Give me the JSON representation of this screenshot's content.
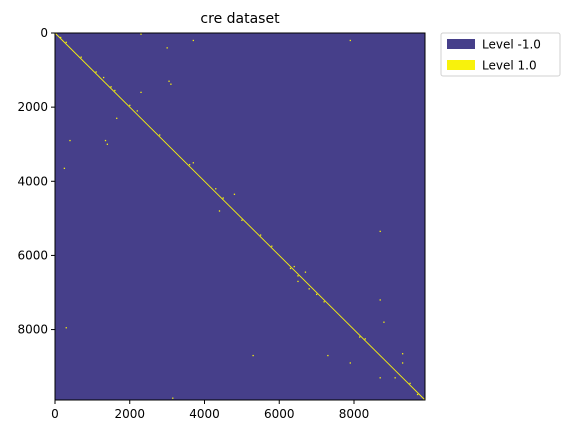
{
  "chart_data": {
    "type": "heatmap",
    "title": "cre dataset",
    "xlabel": "",
    "ylabel": "",
    "xlim": [
      0,
      9900
    ],
    "ylim": [
      9900,
      0
    ],
    "x_ticks": [
      0,
      2000,
      4000,
      6000,
      8000
    ],
    "y_ticks": [
      0,
      2000,
      4000,
      6000,
      8000
    ],
    "x_tick_labels": [
      "0",
      "2000",
      "4000",
      "6000",
      "8000"
    ],
    "y_tick_labels": [
      "0",
      "2000",
      "4000",
      "6000",
      "8000"
    ],
    "levels": [
      {
        "label": "Level -1.0",
        "value": -1.0,
        "color": "#463f8a"
      },
      {
        "label": "Level 1.0",
        "value": 1.0,
        "color": "#f8f20c"
      }
    ],
    "diagonal": {
      "from": [
        0,
        0
      ],
      "to": [
        9900,
        9900
      ],
      "value": 1.0
    },
    "points": [
      [
        150,
        120
      ],
      [
        300,
        250
      ],
      [
        700,
        650
      ],
      [
        1100,
        1050
      ],
      [
        1300,
        1200
      ],
      [
        1500,
        1450
      ],
      [
        1600,
        1550
      ],
      [
        2000,
        1950
      ],
      [
        2200,
        2100
      ],
      [
        2300,
        1600
      ],
      [
        2800,
        2750
      ],
      [
        3000,
        400
      ],
      [
        3050,
        1300
      ],
      [
        3100,
        1380
      ],
      [
        3600,
        3550
      ],
      [
        3700,
        200
      ],
      [
        3700,
        3500
      ],
      [
        1350,
        2900
      ],
      [
        1400,
        3000
      ],
      [
        1650,
        2300
      ],
      [
        400,
        2900
      ],
      [
        250,
        3650
      ],
      [
        4300,
        4200
      ],
      [
        4500,
        4450
      ],
      [
        4400,
        4800
      ],
      [
        4800,
        4350
      ],
      [
        5000,
        5050
      ],
      [
        5300,
        8700
      ],
      [
        5500,
        5450
      ],
      [
        5800,
        5750
      ],
      [
        6400,
        6300
      ],
      [
        6500,
        6700
      ],
      [
        6500,
        6550
      ],
      [
        6700,
        6450
      ],
      [
        6800,
        6900
      ],
      [
        7000,
        7050
      ],
      [
        7200,
        7250
      ],
      [
        7300,
        8700
      ],
      [
        7900,
        200
      ],
      [
        7900,
        8900
      ],
      [
        8300,
        8250
      ],
      [
        8700,
        5350
      ],
      [
        8700,
        7200
      ],
      [
        8800,
        7800
      ],
      [
        8700,
        9300
      ],
      [
        9100,
        9300
      ],
      [
        9300,
        8650
      ],
      [
        9300,
        8900
      ],
      [
        9500,
        9450
      ],
      [
        300,
        7950
      ],
      [
        2300,
        30
      ],
      [
        9700,
        9750
      ],
      [
        6300,
        6350
      ],
      [
        8150,
        8200
      ],
      [
        3150,
        9850
      ]
    ]
  }
}
